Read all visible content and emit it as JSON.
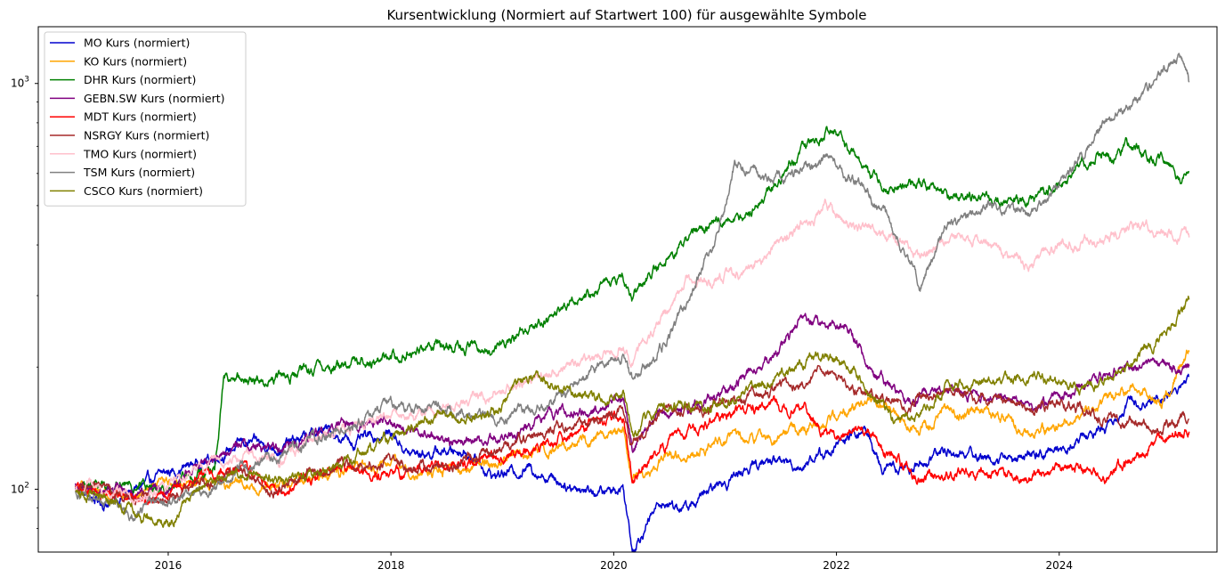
{
  "chart_data": {
    "type": "line",
    "title": "Kursentwicklung (Normiert auf Startwert 100) für ausgewählte Symbole",
    "xlabel": "",
    "ylabel": "",
    "y_scale": "log",
    "y_range": [
      70,
      1380
    ],
    "x_range": [
      "2014-11",
      "2025-06"
    ],
    "x_ticks": [
      {
        "year": 2016,
        "label": "2016"
      },
      {
        "year": 2018,
        "label": "2018"
      },
      {
        "year": 2020,
        "label": "2020"
      },
      {
        "year": 2022,
        "label": "2022"
      },
      {
        "year": 2024,
        "label": "2024"
      }
    ],
    "y_ticks": [
      {
        "value": 100,
        "base": "10",
        "exp": "2"
      },
      {
        "value": 1000,
        "base": "10",
        "exp": "3"
      }
    ],
    "grid": false,
    "legend_position": "upper-left",
    "series": [
      {
        "name": "MO Kurs (normiert)",
        "color": "#0000cd",
        "points": [
          [
            "2015-03",
            100
          ],
          [
            "2015-06",
            92
          ],
          [
            "2015-09",
            98
          ],
          [
            "2016-01",
            110
          ],
          [
            "2016-06",
            120
          ],
          [
            "2016-09",
            130
          ],
          [
            "2017-01",
            127
          ],
          [
            "2017-06",
            140
          ],
          [
            "2017-09",
            130
          ],
          [
            "2018-01",
            138
          ],
          [
            "2018-03",
            122
          ],
          [
            "2018-09",
            125
          ],
          [
            "2018-12",
            108
          ],
          [
            "2019-04",
            113
          ],
          [
            "2019-08",
            103
          ],
          [
            "2019-12",
            98
          ],
          [
            "2020-02",
            102
          ],
          [
            "2020-03",
            72
          ],
          [
            "2020-06",
            93
          ],
          [
            "2020-09",
            90
          ],
          [
            "2020-12",
            101
          ],
          [
            "2021-03",
            112
          ],
          [
            "2021-06",
            118
          ],
          [
            "2021-09",
            115
          ],
          [
            "2021-12",
            124
          ],
          [
            "2022-04",
            140
          ],
          [
            "2022-06",
            112
          ],
          [
            "2022-09",
            113
          ],
          [
            "2023-01",
            125
          ],
          [
            "2023-06",
            119
          ],
          [
            "2023-10",
            120
          ],
          [
            "2024-01",
            126
          ],
          [
            "2024-05",
            138
          ],
          [
            "2024-09",
            165
          ],
          [
            "2024-12",
            168
          ],
          [
            "2025-03",
            186
          ]
        ]
      },
      {
        "name": "KO Kurs (normiert)",
        "color": "#ffa500",
        "points": [
          [
            "2015-03",
            100
          ],
          [
            "2015-09",
            97
          ],
          [
            "2016-01",
            103
          ],
          [
            "2016-06",
            104
          ],
          [
            "2017-01",
            101
          ],
          [
            "2017-06",
            110
          ],
          [
            "2018-01",
            114
          ],
          [
            "2018-06",
            110
          ],
          [
            "2018-12",
            117
          ],
          [
            "2019-06",
            125
          ],
          [
            "2019-12",
            137
          ],
          [
            "2020-02",
            140
          ],
          [
            "2020-03",
            106
          ],
          [
            "2020-06",
            116
          ],
          [
            "2020-09",
            123
          ],
          [
            "2020-12",
            132
          ],
          [
            "2021-06",
            135
          ],
          [
            "2021-12",
            147
          ],
          [
            "2022-04",
            163
          ],
          [
            "2022-07",
            160
          ],
          [
            "2022-10",
            140
          ],
          [
            "2023-01",
            158
          ],
          [
            "2023-06",
            153
          ],
          [
            "2023-10",
            137
          ],
          [
            "2024-03",
            152
          ],
          [
            "2024-09",
            182
          ],
          [
            "2024-12",
            160
          ],
          [
            "2025-03",
            225
          ]
        ]
      },
      {
        "name": "DHR Kurs (normiert)",
        "color": "#008000",
        "points": [
          [
            "2015-03",
            100
          ],
          [
            "2015-09",
            103
          ],
          [
            "2016-01",
            100
          ],
          [
            "2016-06",
            112
          ],
          [
            "2016-07",
            188
          ],
          [
            "2016-10",
            185
          ],
          [
            "2017-01",
            188
          ],
          [
            "2017-06",
            200
          ],
          [
            "2017-12",
            210
          ],
          [
            "2018-06",
            228
          ],
          [
            "2018-12",
            220
          ],
          [
            "2019-04",
            255
          ],
          [
            "2019-09",
            295
          ],
          [
            "2019-12",
            325
          ],
          [
            "2020-02",
            330
          ],
          [
            "2020-03",
            300
          ],
          [
            "2020-06",
            360
          ],
          [
            "2020-09",
            420
          ],
          [
            "2020-12",
            455
          ],
          [
            "2021-03",
            470
          ],
          [
            "2021-06",
            560
          ],
          [
            "2021-09",
            670
          ],
          [
            "2021-12",
            770
          ],
          [
            "2022-03",
            670
          ],
          [
            "2022-06",
            560
          ],
          [
            "2022-10",
            560
          ],
          [
            "2023-01",
            530
          ],
          [
            "2023-06",
            520
          ],
          [
            "2023-10",
            510
          ],
          [
            "2024-01",
            570
          ],
          [
            "2024-05",
            660
          ],
          [
            "2024-09",
            700
          ],
          [
            "2024-12",
            650
          ],
          [
            "2025-02",
            570
          ],
          [
            "2025-03",
            590
          ]
        ]
      },
      {
        "name": "GEBN.SW Kurs (normiert)",
        "color": "#800080",
        "points": [
          [
            "2015-03",
            102
          ],
          [
            "2015-09",
            99
          ],
          [
            "2016-01",
            104
          ],
          [
            "2016-06",
            118
          ],
          [
            "2016-09",
            130
          ],
          [
            "2017-01",
            126
          ],
          [
            "2017-06",
            140
          ],
          [
            "2017-12",
            150
          ],
          [
            "2018-06",
            134
          ],
          [
            "2018-12",
            130
          ],
          [
            "2019-06",
            150
          ],
          [
            "2019-12",
            160
          ],
          [
            "2020-02",
            170
          ],
          [
            "2020-03",
            126
          ],
          [
            "2020-06",
            150
          ],
          [
            "2020-12",
            170
          ],
          [
            "2021-06",
            210
          ],
          [
            "2021-09",
            260
          ],
          [
            "2021-12",
            250
          ],
          [
            "2022-02",
            260
          ],
          [
            "2022-05",
            190
          ],
          [
            "2022-09",
            160
          ],
          [
            "2022-12",
            178
          ],
          [
            "2023-06",
            165
          ],
          [
            "2023-10",
            158
          ],
          [
            "2024-03",
            175
          ],
          [
            "2024-06",
            190
          ],
          [
            "2024-09",
            200
          ],
          [
            "2024-12",
            195
          ],
          [
            "2025-03",
            200
          ]
        ]
      },
      {
        "name": "MDT Kurs (normiert)",
        "color": "#ff0000",
        "points": [
          [
            "2015-03",
            100
          ],
          [
            "2015-09",
            95
          ],
          [
            "2016-01",
            97
          ],
          [
            "2016-06",
            110
          ],
          [
            "2016-09",
            112
          ],
          [
            "2017-01",
            100
          ],
          [
            "2017-06",
            112
          ],
          [
            "2017-12",
            108
          ],
          [
            "2018-06",
            112
          ],
          [
            "2018-12",
            118
          ],
          [
            "2019-06",
            130
          ],
          [
            "2019-12",
            148
          ],
          [
            "2020-02",
            152
          ],
          [
            "2020-03",
            104
          ],
          [
            "2020-06",
            125
          ],
          [
            "2020-12",
            150
          ],
          [
            "2021-06",
            158
          ],
          [
            "2021-09",
            160
          ],
          [
            "2021-12",
            135
          ],
          [
            "2022-04",
            140
          ],
          [
            "2022-07",
            120
          ],
          [
            "2022-10",
            105
          ],
          [
            "2023-03",
            110
          ],
          [
            "2023-09",
            106
          ],
          [
            "2024-01",
            116
          ],
          [
            "2024-06",
            110
          ],
          [
            "2024-12",
            132
          ],
          [
            "2025-03",
            142
          ]
        ]
      },
      {
        "name": "NSRGY Kurs (normiert)",
        "color": "#a52a2a",
        "points": [
          [
            "2015-03",
            100
          ],
          [
            "2015-09",
            97
          ],
          [
            "2016-01",
            95
          ],
          [
            "2016-06",
            106
          ],
          [
            "2016-09",
            112
          ],
          [
            "2016-12",
            98
          ],
          [
            "2017-06",
            112
          ],
          [
            "2017-12",
            118
          ],
          [
            "2018-06",
            112
          ],
          [
            "2018-12",
            123
          ],
          [
            "2019-06",
            140
          ],
          [
            "2019-12",
            150
          ],
          [
            "2020-02",
            155
          ],
          [
            "2020-03",
            125
          ],
          [
            "2020-06",
            152
          ],
          [
            "2020-12",
            162
          ],
          [
            "2021-06",
            172
          ],
          [
            "2021-12",
            195
          ],
          [
            "2022-03",
            175
          ],
          [
            "2022-09",
            162
          ],
          [
            "2022-12",
            172
          ],
          [
            "2023-06",
            170
          ],
          [
            "2023-10",
            160
          ],
          [
            "2024-01",
            165
          ],
          [
            "2024-06",
            150
          ],
          [
            "2024-09",
            148
          ],
          [
            "2024-12",
            142
          ],
          [
            "2025-03",
            150
          ]
        ]
      },
      {
        "name": "TMO Kurs (normiert)",
        "color": "#ffc0cb",
        "points": [
          [
            "2015-03",
            100
          ],
          [
            "2015-09",
            96
          ],
          [
            "2016-01",
            102
          ],
          [
            "2016-06",
            118
          ],
          [
            "2016-09",
            120
          ],
          [
            "2017-01",
            118
          ],
          [
            "2017-06",
            135
          ],
          [
            "2017-12",
            150
          ],
          [
            "2018-06",
            158
          ],
          [
            "2018-12",
            170
          ],
          [
            "2019-06",
            195
          ],
          [
            "2019-12",
            210
          ],
          [
            "2020-02",
            230
          ],
          [
            "2020-03",
            205
          ],
          [
            "2020-06",
            260
          ],
          [
            "2020-09",
            330
          ],
          [
            "2020-12",
            330
          ],
          [
            "2021-03",
            340
          ],
          [
            "2021-06",
            390
          ],
          [
            "2021-09",
            440
          ],
          [
            "2021-12",
            500
          ],
          [
            "2022-03",
            440
          ],
          [
            "2022-06",
            420
          ],
          [
            "2022-10",
            380
          ],
          [
            "2023-01",
            420
          ],
          [
            "2023-06",
            400
          ],
          [
            "2023-10",
            350
          ],
          [
            "2024-01",
            400
          ],
          [
            "2024-06",
            420
          ],
          [
            "2024-09",
            440
          ],
          [
            "2024-12",
            430
          ],
          [
            "2025-03",
            410
          ]
        ]
      },
      {
        "name": "TSM Kurs (normiert)",
        "color": "#808080",
        "points": [
          [
            "2015-03",
            100
          ],
          [
            "2015-09",
            88
          ],
          [
            "2016-01",
            94
          ],
          [
            "2016-06",
            100
          ],
          [
            "2016-09",
            115
          ],
          [
            "2016-12",
            118
          ],
          [
            "2017-06",
            135
          ],
          [
            "2017-12",
            160
          ],
          [
            "2018-06",
            158
          ],
          [
            "2018-12",
            150
          ],
          [
            "2019-06",
            160
          ],
          [
            "2019-12",
            210
          ],
          [
            "2020-02",
            220
          ],
          [
            "2020-03",
            185
          ],
          [
            "2020-06",
            220
          ],
          [
            "2020-09",
            290
          ],
          [
            "2020-12",
            410
          ],
          [
            "2021-02",
            640
          ],
          [
            "2021-06",
            580
          ],
          [
            "2021-09",
            600
          ],
          [
            "2021-12",
            650
          ],
          [
            "2022-03",
            570
          ],
          [
            "2022-06",
            480
          ],
          [
            "2022-10",
            320
          ],
          [
            "2023-01",
            440
          ],
          [
            "2023-06",
            500
          ],
          [
            "2023-10",
            470
          ],
          [
            "2024-01",
            560
          ],
          [
            "2024-06",
            800
          ],
          [
            "2024-09",
            900
          ],
          [
            "2024-12",
            1050
          ],
          [
            "2025-02",
            1140
          ],
          [
            "2025-03",
            990
          ]
        ]
      },
      {
        "name": "CSCO Kurs (normiert)",
        "color": "#808000",
        "points": [
          [
            "2015-03",
            100
          ],
          [
            "2015-09",
            90
          ],
          [
            "2016-01",
            82
          ],
          [
            "2016-03",
            97
          ],
          [
            "2016-06",
            104
          ],
          [
            "2016-09",
            110
          ],
          [
            "2017-01",
            106
          ],
          [
            "2017-06",
            110
          ],
          [
            "2017-12",
            130
          ],
          [
            "2018-06",
            150
          ],
          [
            "2018-12",
            155
          ],
          [
            "2019-04",
            190
          ],
          [
            "2019-08",
            175
          ],
          [
            "2019-12",
            165
          ],
          [
            "2020-02",
            172
          ],
          [
            "2020-03",
            135
          ],
          [
            "2020-06",
            160
          ],
          [
            "2020-12",
            160
          ],
          [
            "2021-06",
            185
          ],
          [
            "2021-12",
            220
          ],
          [
            "2022-03",
            190
          ],
          [
            "2022-07",
            150
          ],
          [
            "2022-10",
            155
          ],
          [
            "2023-01",
            180
          ],
          [
            "2023-06",
            188
          ],
          [
            "2023-10",
            190
          ],
          [
            "2024-03",
            175
          ],
          [
            "2024-09",
            205
          ],
          [
            "2024-12",
            240
          ],
          [
            "2025-03",
            290
          ]
        ]
      }
    ]
  }
}
